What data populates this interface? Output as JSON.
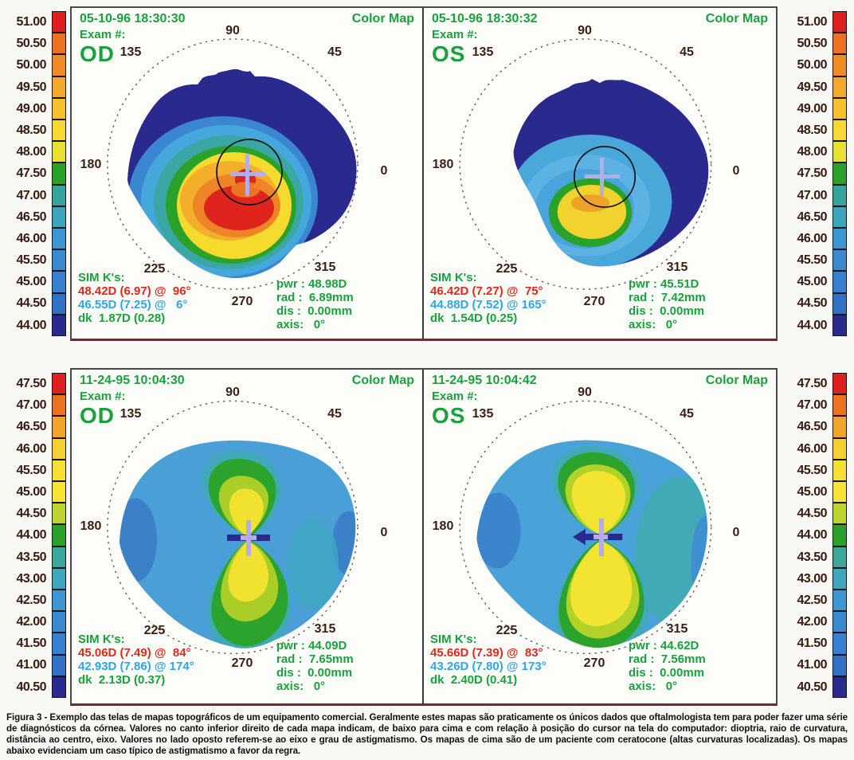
{
  "scales": {
    "top": {
      "values": [
        "51.00",
        "50.50",
        "50.00",
        "49.50",
        "49.00",
        "48.50",
        "48.00",
        "47.50",
        "47.00",
        "46.50",
        "46.00",
        "45.50",
        "45.00",
        "44.50",
        "44.00"
      ],
      "colors": [
        "#e01f1f",
        "#ec7222",
        "#f08c27",
        "#f3a92b",
        "#f6c02e",
        "#f8d832",
        "#eadf33",
        "#2aa22a",
        "#36a49c",
        "#3ba4be",
        "#3c96d2",
        "#3a8ad0",
        "#3780d2",
        "#3370c8",
        "#2a2a8e"
      ]
    },
    "bottom": {
      "values": [
        "47.50",
        "47.00",
        "46.50",
        "46.00",
        "45.50",
        "45.00",
        "44.50",
        "44.00",
        "43.50",
        "43.00",
        "42.50",
        "42.00",
        "41.50",
        "41.00",
        "40.50"
      ],
      "colors": [
        "#e01f1f",
        "#ec7222",
        "#f0a42a",
        "#f6d030",
        "#f8df33",
        "#f8e435",
        "#bcd42c",
        "#2aa22a",
        "#3aa79a",
        "#3fa6be",
        "#3c96d2",
        "#3a8ad0",
        "#3780d2",
        "#3370c8",
        "#2a2a8e"
      ]
    }
  },
  "angle_labels": [
    "90",
    "45",
    "135",
    "180",
    "0",
    "225",
    "270",
    "315"
  ],
  "panels": [
    {
      "datetime": "05-10-96 18:30:30",
      "map_type": "Color Map",
      "exam_label": "Exam #:",
      "eye": "OD",
      "sim": {
        "title": "SIM K's:",
        "steep": "48.42D (6.97) @  96°",
        "flat": "46.55D (7.25) @   6°",
        "dk": "dk  1.87D (0.28)"
      },
      "readout": {
        "pwr": "pwr : 48.98D",
        "rad": "rad :  6.89mm",
        "dis": "dis :  0.00mm",
        "axis": "axis:   0°"
      }
    },
    {
      "datetime": "05-10-96 18:30:32",
      "map_type": "Color Map",
      "exam_label": "Exam #:",
      "eye": "OS",
      "sim": {
        "title": "SIM K's:",
        "steep": "46.42D (7.27) @  75°",
        "flat": "44.88D (7.52) @ 165°",
        "dk": "dk  1.54D (0.25)"
      },
      "readout": {
        "pwr": "pwr : 45.51D",
        "rad": "rad :  7.42mm",
        "dis": "dis :  0.00mm",
        "axis": "axis:   0°"
      }
    },
    {
      "datetime": "11-24-95 10:04:30",
      "map_type": "Color Map",
      "exam_label": "Exam #:",
      "eye": "OD",
      "sim": {
        "title": "SIM K's:",
        "steep": "45.06D (7.49) @  84°",
        "flat": "42.93D (7.86) @ 174°",
        "dk": "dk  2.13D (0.37)"
      },
      "readout": {
        "pwr": "pwr : 44.09D",
        "rad": "rad :  7.65mm",
        "dis": "dis :  0.00mm",
        "axis": "axis:   0°"
      }
    },
    {
      "datetime": "11-24-95 10:04:42",
      "map_type": "Color Map",
      "exam_label": "Exam #:",
      "eye": "OS",
      "sim": {
        "title": "SIM K's:",
        "steep": "45.66D (7.39) @  83°",
        "flat": "43.26D (7.80) @ 173°",
        "dk": "dk  2.40D (0.41)"
      },
      "readout": {
        "pwr": "pwr : 44.62D",
        "rad": "rad :  7.56mm",
        "dis": "dis :  0.00mm",
        "axis": "axis:   0°"
      }
    }
  ],
  "caption": {
    "text": "Figura 3 - Exemplo das telas de mapas topográficos de um equipamento comercial.  Geralmente estes mapas são praticamente os únicos dados que oftalmologista tem para poder fazer uma série de diagnósticos da córnea. Valores no canto inferior direito de cada mapa indicam, de baixo para cima e com relação à posição do cursor na tela do computador: dioptria, raio de curvatura, distância ao centro, eixo. Valores no lado oposto referem-se ao eixo e grau de astigmatismo. Os mapas de cima são de um paciente com ceratocone (altas curvaturas localizadas). Os mapas abaixo evidenciam um caso típico de astigmatismo a favor da regra."
  },
  "colors": {
    "text_green": "#18a23c",
    "text_red": "#e22818",
    "text_cyan": "#2ea6ea",
    "angle_maroon": "#3d1e14",
    "cursor_lavender": "#b6ace6",
    "zone_navy": "#2a2a8e"
  }
}
